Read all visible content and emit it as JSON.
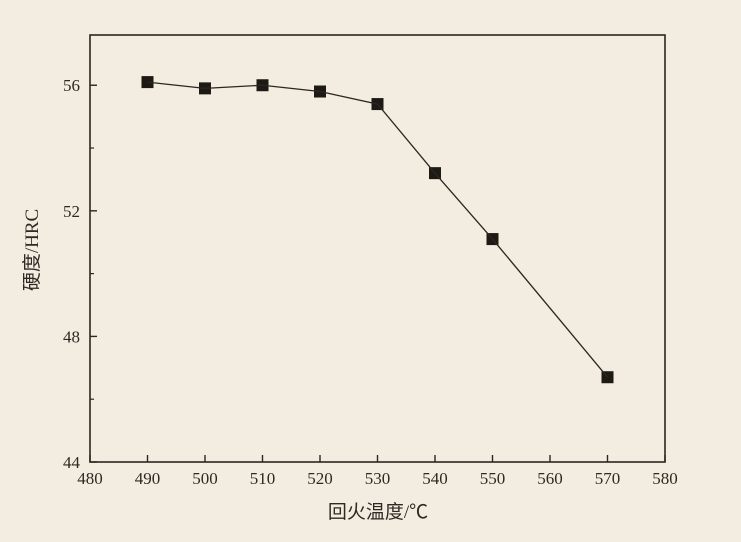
{
  "figure": {
    "background_color": "#f2ece1",
    "axis_color": "#2b261f",
    "text_color": "#2e2922"
  },
  "chart_data": {
    "type": "line",
    "title": "",
    "xlabel": "回火温度/℃",
    "ylabel": "硬度/HRC",
    "x": [
      490,
      500,
      510,
      520,
      530,
      540,
      550,
      570
    ],
    "y": [
      56.1,
      55.9,
      56.0,
      55.8,
      55.4,
      53.2,
      51.1,
      46.7
    ],
    "marker": "filled-square",
    "line_color": "#2b261f",
    "marker_color": "#1d1914",
    "xlim": [
      480,
      580
    ],
    "ylim": [
      44,
      57.6
    ],
    "xticks": [
      480,
      490,
      500,
      510,
      520,
      530,
      540,
      550,
      560,
      570,
      580
    ],
    "yticks_major": [
      44,
      48,
      52,
      56
    ],
    "yticks_minor": [
      46,
      50,
      54
    ],
    "grid": "off",
    "legend": "none"
  }
}
